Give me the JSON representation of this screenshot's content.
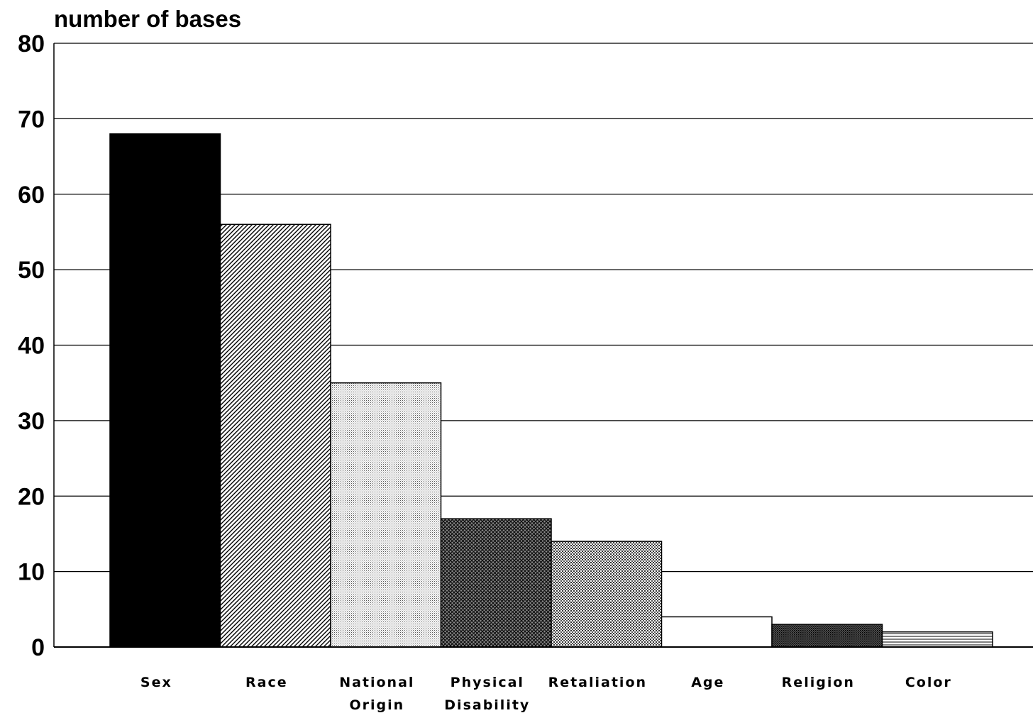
{
  "chart_data": {
    "type": "bar",
    "title": "",
    "ylabel": "number of bases",
    "xlabel": "",
    "ylim": [
      0,
      80
    ],
    "yticks": [
      0,
      10,
      20,
      30,
      40,
      50,
      60,
      70,
      80
    ],
    "grid": true,
    "categories": [
      [
        "Sex"
      ],
      [
        "Race"
      ],
      [
        "National",
        "Origin"
      ],
      [
        "Physical",
        "Disability"
      ],
      [
        "Retaliation"
      ],
      [
        "Age"
      ],
      [
        "Religion"
      ],
      [
        "Color"
      ]
    ],
    "values": [
      68,
      56,
      35,
      17,
      14,
      4,
      3,
      2
    ],
    "fills": [
      "black",
      "diagonal",
      "light-dots",
      "cross-hatch",
      "dots",
      "white",
      "dark-dots",
      "horizontal-lines"
    ],
    "bar_color": "#000000"
  }
}
